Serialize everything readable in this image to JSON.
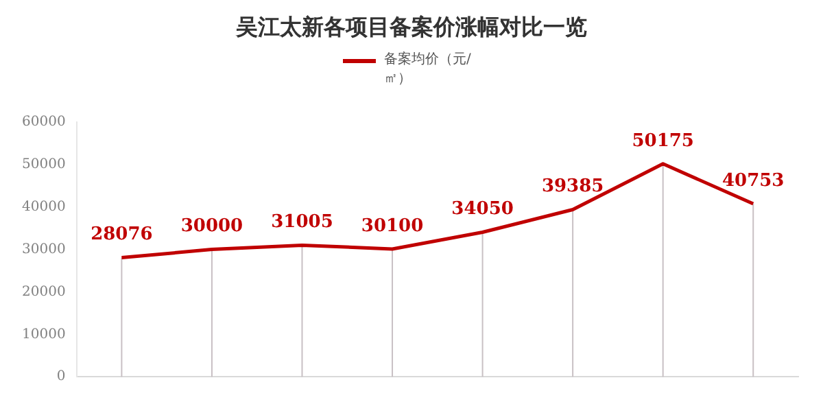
{
  "chart_data": {
    "type": "line",
    "title": "吴江太新各项目备案价涨幅对比一览",
    "categories": [
      null,
      null,
      null,
      null,
      null,
      null,
      null,
      null
    ],
    "series": [
      {
        "name": "备案均价（元/㎡）",
        "color": "#c00000",
        "values": [
          28076,
          30000,
          31005,
          30100,
          34050,
          39385,
          50175,
          40753
        ]
      }
    ],
    "ylim": [
      0,
      60000
    ],
    "yticks": [
      0,
      10000,
      20000,
      30000,
      40000,
      50000,
      60000
    ],
    "grid": false,
    "legend": "top",
    "marker": "none",
    "line_style": "solid",
    "data_labels": true
  }
}
